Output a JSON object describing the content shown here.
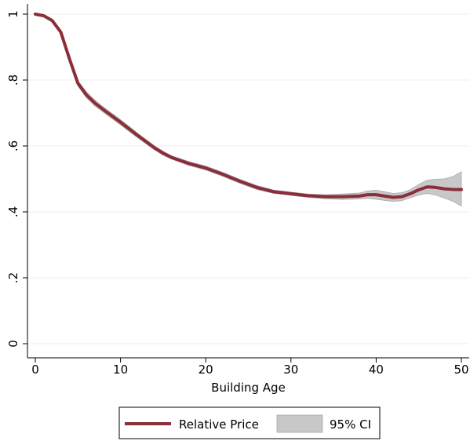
{
  "chart_data": {
    "type": "line",
    "title": "",
    "xlabel": "Building Age",
    "ylabel": "",
    "xlim": [
      0,
      50
    ],
    "ylim": [
      0,
      1
    ],
    "x_ticks": [
      0,
      10,
      20,
      30,
      40,
      50
    ],
    "x_tick_labels": [
      "0",
      "10",
      "20",
      "30",
      "40",
      "50"
    ],
    "y_ticks": [
      0,
      0.2,
      0.4,
      0.6,
      0.8,
      1
    ],
    "y_tick_labels": [
      "0",
      ".2",
      ".4",
      ".6",
      ".8",
      "1"
    ],
    "grid": "horizontal",
    "legend_position": "bottom",
    "series": [
      {
        "name": "Relative Price",
        "color": "#8b2e3a",
        "x": [
          0,
          1,
          2,
          3,
          4,
          5,
          6,
          7,
          8,
          10,
          12,
          14,
          15,
          16,
          18,
          20,
          22,
          24,
          26,
          28,
          30,
          32,
          34,
          36,
          38,
          39,
          40,
          41,
          42,
          43,
          44,
          45,
          46,
          47,
          48,
          49,
          50
        ],
        "values": [
          1.0,
          0.995,
          0.98,
          0.945,
          0.865,
          0.79,
          0.755,
          0.73,
          0.71,
          0.672,
          0.632,
          0.594,
          0.578,
          0.565,
          0.547,
          0.533,
          0.514,
          0.493,
          0.474,
          0.461,
          0.455,
          0.449,
          0.446,
          0.446,
          0.448,
          0.452,
          0.452,
          0.448,
          0.444,
          0.446,
          0.455,
          0.467,
          0.476,
          0.474,
          0.47,
          0.468,
          0.468
        ]
      }
    ],
    "ci": {
      "name": "95% CI",
      "color": "#c8c8c8",
      "x": [
        0,
        1,
        2,
        3,
        4,
        5,
        6,
        7,
        8,
        10,
        12,
        14,
        15,
        16,
        18,
        20,
        22,
        24,
        26,
        28,
        30,
        32,
        34,
        36,
        38,
        39,
        40,
        41,
        42,
        43,
        44,
        45,
        46,
        47,
        48,
        49,
        50
      ],
      "lower": [
        0.997,
        0.992,
        0.976,
        0.94,
        0.858,
        0.782,
        0.746,
        0.721,
        0.702,
        0.664,
        0.625,
        0.588,
        0.572,
        0.56,
        0.541,
        0.527,
        0.508,
        0.487,
        0.468,
        0.456,
        0.45,
        0.444,
        0.44,
        0.438,
        0.439,
        0.441,
        0.438,
        0.435,
        0.432,
        0.434,
        0.443,
        0.451,
        0.456,
        0.451,
        0.442,
        0.432,
        0.418
      ],
      "upper": [
        1.003,
        0.998,
        0.984,
        0.95,
        0.872,
        0.798,
        0.764,
        0.739,
        0.718,
        0.68,
        0.639,
        0.6,
        0.584,
        0.57,
        0.553,
        0.539,
        0.52,
        0.499,
        0.48,
        0.466,
        0.46,
        0.454,
        0.452,
        0.454,
        0.457,
        0.463,
        0.466,
        0.461,
        0.456,
        0.458,
        0.467,
        0.483,
        0.496,
        0.499,
        0.5,
        0.507,
        0.522
      ]
    }
  }
}
